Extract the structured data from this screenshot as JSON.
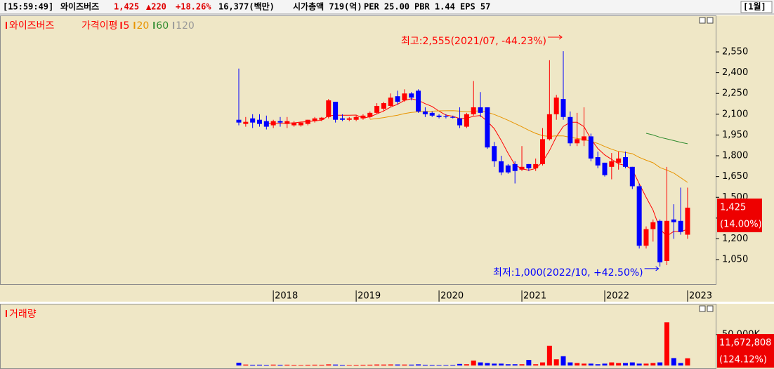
{
  "header": {
    "time": "[15:59:49]",
    "name": "와이즈버즈",
    "price": "1,425",
    "change": "▲220",
    "change_pct": "+18.26%",
    "trade_value": "16,377(백만)",
    "market_cap": "시가총액 719(억)",
    "per": "PER 25.00",
    "pbr": "PBR 1.44",
    "eps": "EPS 57",
    "period": "[1월]"
  },
  "chart_data": [
    {
      "type": "candlestick",
      "categories": [
        null,
        null,
        null,
        null,
        null,
        "2018",
        null,
        null,
        null,
        null,
        null,
        null,
        null,
        null,
        null,
        null,
        null,
        "2019",
        null,
        null,
        null,
        null,
        null,
        null,
        null,
        null,
        null,
        null,
        null,
        "2020",
        null,
        null,
        null,
        null,
        null,
        null,
        null,
        null,
        null,
        null,
        null,
        "2021",
        null,
        null,
        null,
        null,
        null,
        null,
        null,
        null,
        null,
        null,
        null,
        "2022",
        null,
        null,
        null,
        null,
        null,
        null,
        null,
        null,
        null,
        null,
        null,
        "2023"
      ],
      "series": [
        {
          "name": "와이즈버즈",
          "open": [
            2060,
            2030,
            2070,
            2060,
            2050,
            2020,
            2050,
            2030,
            2020,
            2020,
            2030,
            2050,
            2060,
            2080,
            2190,
            2070,
            2060,
            2060,
            2070,
            2080,
            2110,
            2140,
            2160,
            2230,
            2200,
            2250,
            2270,
            2120,
            2110,
            2090,
            2085,
            2080,
            2070,
            2010,
            2100,
            2150,
            2150,
            1870,
            1760,
            1730,
            1740,
            1700,
            1740,
            1710,
            1740,
            1920,
            2100,
            2210,
            2080,
            1890,
            1910,
            1940,
            1790,
            1750,
            1720,
            1750,
            1790,
            1720,
            1580,
            1150,
            1270,
            1330,
            1040,
            1340,
            1330,
            1230
          ],
          "high": [
            2430,
            2080,
            2100,
            2100,
            2090,
            2060,
            2080,
            2080,
            2050,
            2040,
            2060,
            2080,
            2080,
            2210,
            2190,
            2100,
            2080,
            2090,
            2100,
            2120,
            2180,
            2190,
            2250,
            2270,
            2280,
            2260,
            2280,
            2150,
            2120,
            2100,
            2100,
            2090,
            2150,
            2110,
            2340,
            2260,
            2150,
            1900,
            1800,
            1740,
            1760,
            1870,
            1740,
            1780,
            2000,
            2490,
            2240,
            2555,
            2120,
            2110,
            2150,
            1960,
            1830,
            1750,
            1820,
            1830,
            1830,
            1720,
            1600,
            1290,
            1340,
            1340,
            1720,
            1450,
            1570,
            1570
          ],
          "low": [
            2020,
            2010,
            2000,
            2010,
            1990,
            2000,
            2010,
            2000,
            2010,
            2010,
            2020,
            2040,
            2050,
            2070,
            2040,
            2050,
            2050,
            2050,
            2060,
            2070,
            2100,
            2120,
            2150,
            2170,
            2190,
            2200,
            2110,
            2080,
            2080,
            2070,
            2070,
            2070,
            2000,
            2000,
            2090,
            2080,
            1850,
            1720,
            1660,
            1670,
            1600,
            1690,
            1690,
            1690,
            1730,
            1910,
            2060,
            2060,
            1870,
            1870,
            1870,
            1760,
            1710,
            1650,
            1630,
            1700,
            1710,
            1560,
            1130,
            1130,
            1180,
            1000,
            1010,
            1200,
            1230,
            1200
          ],
          "close": [
            2040,
            2045,
            2040,
            2030,
            2010,
            2050,
            2040,
            2050,
            2040,
            2040,
            2060,
            2070,
            2075,
            2200,
            2060,
            2060,
            2070,
            2080,
            2090,
            2110,
            2160,
            2180,
            2220,
            2190,
            2250,
            2220,
            2120,
            2100,
            2090,
            2080,
            2080,
            2075,
            2020,
            2100,
            2150,
            2110,
            1860,
            1760,
            1680,
            1680,
            1690,
            1720,
            1710,
            1740,
            1920,
            2100,
            2220,
            2080,
            1890,
            1920,
            1940,
            1780,
            1730,
            1660,
            1760,
            1780,
            1720,
            1580,
            1150,
            1270,
            1320,
            1030,
            1330,
            1320,
            1250,
            1425
          ]
        }
      ],
      "up_color": "#ff0000",
      "down_color": "#0000ff",
      "ma_label": "가격이평",
      "ma": [
        {
          "period": 5,
          "color": "#ff0000"
        },
        {
          "period": 20,
          "color": "#e89400"
        },
        {
          "period": 60,
          "color": "#2e8b2e"
        },
        {
          "period": 120,
          "color": "#999999"
        }
      ],
      "ylim": [
        873,
        2773
      ],
      "yticks": [
        {
          "value": 2550,
          "label": "2,550"
        },
        {
          "value": 2400,
          "label": "2,400"
        },
        {
          "value": 2250,
          "label": "2,250"
        },
        {
          "value": 2100,
          "label": "2,100"
        },
        {
          "value": 1950,
          "label": "1,950"
        },
        {
          "value": 1800,
          "label": "1,800"
        },
        {
          "value": 1650,
          "label": "1,650"
        },
        {
          "value": 1500,
          "label": "1,500"
        },
        {
          "value": 1350,
          "label": "1,350"
        },
        {
          "value": 1200,
          "label": "1,200"
        },
        {
          "value": 1050,
          "label": "1,050"
        }
      ],
      "annotations": [
        {
          "text": "최고:2,555(2021/07, -44.23%)",
          "color": "#ff0000"
        },
        {
          "text": "최저:1,000(2022/10, +42.50%)",
          "color": "#0000ff"
        }
      ],
      "last_label": {
        "value": 1425,
        "label": "1,425",
        "change": "(14.00%)"
      }
    },
    {
      "type": "bar",
      "title": "거래량",
      "values": [
        4500000,
        1500000,
        1200000,
        1300000,
        1100000,
        1400000,
        1200000,
        1300000,
        1100000,
        1000000,
        1200000,
        1300000,
        1200000,
        1800000,
        1500000,
        1100000,
        1000000,
        1100000,
        1200000,
        1300000,
        1600000,
        1500000,
        1700000,
        1600000,
        1500000,
        1400000,
        1800000,
        1200000,
        1100000,
        1000000,
        1000000,
        1100000,
        2500000,
        2000000,
        8000000,
        5000000,
        4000000,
        3000000,
        3000000,
        2000000,
        2000000,
        2000000,
        9000000,
        2000000,
        5000000,
        32000000,
        10000000,
        15000000,
        5000000,
        4000000,
        3000000,
        3000000,
        2000000,
        3000000,
        5000000,
        4000000,
        4000000,
        5000000,
        3000000,
        3000000,
        4000000,
        5000000,
        70000000,
        12000000,
        4000000,
        11672808
      ],
      "ylim": [
        0,
        92000000
      ],
      "yticks": [
        {
          "value": 50000000,
          "label": "50,000K"
        }
      ],
      "last_label": {
        "label": "11,672,808",
        "change": "(124.12%)"
      }
    }
  ]
}
